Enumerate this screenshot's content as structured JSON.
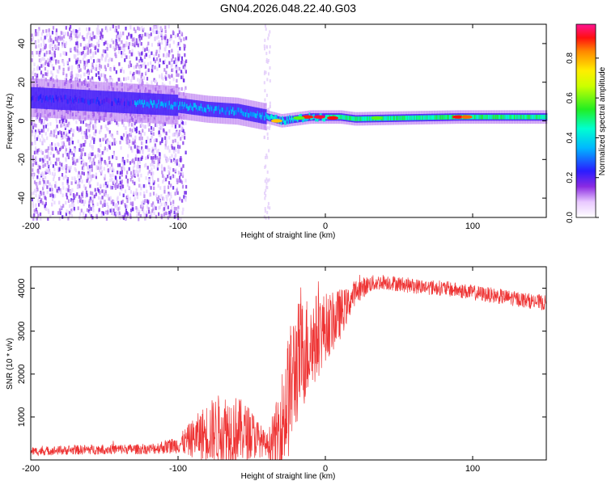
{
  "title": "GN04.2026.048.22.40.G03",
  "chart_data": [
    {
      "type": "heatmap",
      "id": "spectrogram",
      "xlabel": "Height of straight line (km)",
      "ylabel": "Frequency (Hz)",
      "xlim": [
        -200,
        150
      ],
      "ylim": [
        -50,
        50
      ],
      "xticks": [
        -200,
        -100,
        0,
        100
      ],
      "xtick_labels": [
        "-200",
        "-100",
        "0",
        "100"
      ],
      "yticks": [
        -40,
        -20,
        0,
        20,
        40
      ],
      "ytick_labels": [
        "-40",
        "-20",
        "0",
        "20",
        "40"
      ],
      "colorbar": {
        "label": "Normalized spectral amplitude",
        "range": [
          0,
          0.97
        ],
        "ticks": [
          0,
          0.2,
          0.4,
          0.6,
          0.8
        ],
        "tick_labels": [
          "0.0",
          "0.2",
          "0.4",
          "0.6",
          "0.8"
        ],
        "colormap": "rainbow"
      },
      "ridge": {
        "description_points_km_hz": [
          [
            -200,
            12
          ],
          [
            -150,
            10
          ],
          [
            -100,
            8
          ],
          [
            -80,
            6
          ],
          [
            -60,
            5
          ],
          [
            -40,
            2
          ],
          [
            -30,
            0
          ],
          [
            -10,
            2
          ],
          [
            10,
            2
          ],
          [
            20,
            1
          ],
          [
            90,
            2
          ],
          [
            150,
            2
          ]
        ]
      }
    },
    {
      "type": "line",
      "id": "snr",
      "xlabel": "Height of straight line (km)",
      "ylabel": "SNR (10 * v/v)",
      "xlim": [
        -200,
        150
      ],
      "ylim": [
        0,
        4500
      ],
      "xticks": [
        -200,
        -100,
        0,
        100
      ],
      "xtick_labels": [
        "-200",
        "-100",
        "0",
        "100"
      ],
      "yticks": [
        1000,
        2000,
        3000,
        4000
      ],
      "ytick_labels": [
        "1000",
        "2000",
        "3000",
        "4000"
      ],
      "series": [
        {
          "name": "SNR",
          "color": "#ee3333",
          "envelope_x": [
            -200,
            -150,
            -120,
            -100,
            -90,
            -80,
            -70,
            -60,
            -50,
            -40,
            -35,
            -30,
            -25,
            -20,
            -15,
            -10,
            -5,
            0,
            5,
            10,
            15,
            20,
            30,
            40,
            50,
            60,
            80,
            100,
            120,
            150
          ],
          "envelope_y": [
            200,
            250,
            250,
            350,
            500,
            650,
            700,
            700,
            600,
            350,
            450,
            800,
            1500,
            2200,
            2500,
            2700,
            2900,
            3100,
            3200,
            3400,
            3600,
            3900,
            4100,
            4150,
            4100,
            4050,
            4000,
            3900,
            3800,
            3650
          ],
          "noise_amp": [
            100,
            120,
            120,
            200,
            450,
            700,
            900,
            800,
            600,
            250,
            600,
            1200,
            1500,
            1500,
            1300,
            1200,
            1000,
            800,
            700,
            600,
            400,
            300,
            200,
            180,
            180,
            180,
            180,
            180,
            180,
            180
          ]
        }
      ]
    }
  ]
}
